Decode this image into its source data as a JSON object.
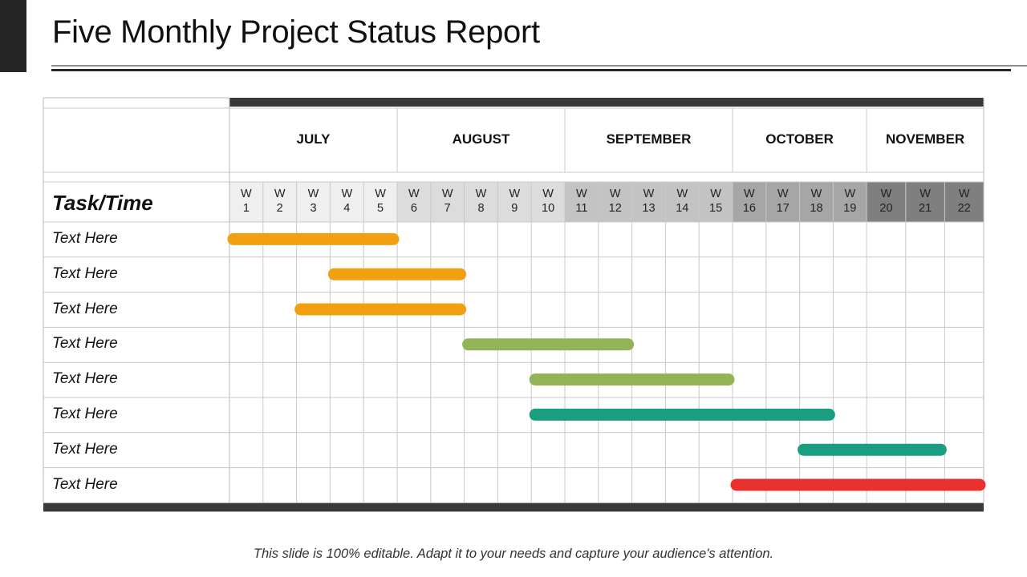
{
  "title": "Five Monthly Project Status Report",
  "colors": {
    "dark": "#3a3a3a",
    "orange": "#f0a010",
    "light_green": "#92b456",
    "teal": "#1a9e82",
    "red": "#e8302e"
  },
  "chart_data": {
    "type": "gantt",
    "row_header": "Task/Time",
    "months": [
      {
        "label": "JULY",
        "weeks": 5
      },
      {
        "label": "AUGUST",
        "weeks": 5
      },
      {
        "label": "SEPTEMBER",
        "weeks": 5
      },
      {
        "label": "OCTOBER",
        "weeks": 4
      },
      {
        "label": "NOVEMBER",
        "weeks": 3
      }
    ],
    "week_prefix": "W",
    "weeks": [
      "1",
      "2",
      "3",
      "4",
      "5",
      "6",
      "7",
      "8",
      "9",
      "10",
      "11",
      "12",
      "13",
      "14",
      "15",
      "16",
      "17",
      "18",
      "19",
      "20",
      "21",
      "22"
    ],
    "week_shades": [
      "#efefef",
      "#efefef",
      "#efefef",
      "#efefef",
      "#efefef",
      "#dcdcdc",
      "#dcdcdc",
      "#dcdcdc",
      "#dcdcdc",
      "#dcdcdc",
      "#c3c3c3",
      "#c3c3c3",
      "#c3c3c3",
      "#c3c3c3",
      "#c3c3c3",
      "#a6a6a6",
      "#a6a6a6",
      "#a6a6a6",
      "#a6a6a6",
      "#7f7f7f",
      "#7f7f7f",
      "#7f7f7f"
    ],
    "tasks": [
      {
        "label": "Text Here",
        "start_week": 1,
        "end_week": 5,
        "color": "#f0a010"
      },
      {
        "label": "Text Here",
        "start_week": 4,
        "end_week": 7,
        "color": "#f0a010"
      },
      {
        "label": "Text Here",
        "start_week": 3,
        "end_week": 7,
        "color": "#f0a010"
      },
      {
        "label": "Text Here",
        "start_week": 8,
        "end_week": 12,
        "color": "#92b456"
      },
      {
        "label": "Text Here",
        "start_week": 10,
        "end_week": 15,
        "color": "#92b456"
      },
      {
        "label": "Text Here",
        "start_week": 10,
        "end_week": 18,
        "color": "#1a9e82"
      },
      {
        "label": "Text Here",
        "start_week": 18,
        "end_week": 21,
        "color": "#1a9e82"
      },
      {
        "label": "Text Here",
        "start_week": 16,
        "end_week": 22,
        "color": "#e8302e"
      }
    ]
  },
  "footer": "This slide is 100% editable. Adapt it to your needs and capture your audience's attention."
}
